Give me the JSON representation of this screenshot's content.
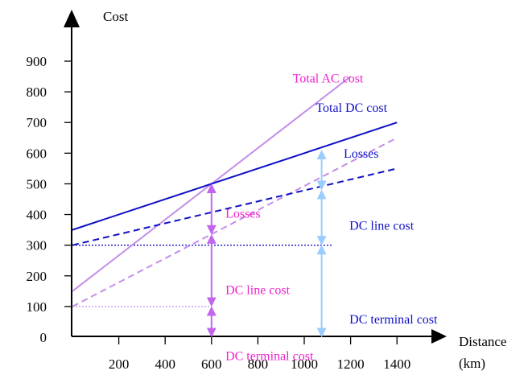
{
  "chart_data": {
    "type": "line",
    "ylabel": "Cost",
    "xlabel": "Distance",
    "xlabel_unit": "(km)",
    "xlim": [
      0,
      1500
    ],
    "ylim": [
      0,
      900
    ],
    "xticks": [
      200,
      400,
      600,
      800,
      1000,
      1200,
      1400
    ],
    "yticks": [
      0,
      100,
      200,
      300,
      400,
      500,
      600,
      700,
      800,
      900
    ],
    "grid": false,
    "legend": "none",
    "colors": {
      "ac": "#c48ee8",
      "dc": "#1010c8",
      "ac_label": "#ee22cc",
      "dc_label": "#1010c8",
      "ac_arrow": "#c266ee",
      "dc_arrow": "#99ccff"
    },
    "series": [
      {
        "key": "total_ac",
        "name": "Total AC cost",
        "style": "solid",
        "color": "ac",
        "x": [
          0,
          1200
        ],
        "y": [
          150,
          850
        ]
      },
      {
        "key": "ac_no_losses",
        "style": "dashed",
        "color": "ac",
        "x": [
          0,
          1400
        ],
        "y": [
          100,
          650
        ]
      },
      {
        "key": "total_dc",
        "name": "Total DC cost",
        "style": "solid",
        "color": "dc",
        "x": [
          0,
          1400
        ],
        "y": [
          350,
          700
        ]
      },
      {
        "key": "dc_no_losses",
        "style": "dashed",
        "color": "dc",
        "x": [
          0,
          1400
        ],
        "y": [
          300,
          550
        ]
      }
    ],
    "reference_lines": [
      {
        "key": "dc_terminal",
        "style": "dotted",
        "color": "dc",
        "x": [
          0,
          1120
        ],
        "y": 300
      },
      {
        "key": "ac_terminal",
        "style": "dotted",
        "color": "ac",
        "x": [
          0,
          600
        ],
        "y": 100
      }
    ],
    "brackets": [
      {
        "key": "ac_losses",
        "color": "ac_arrow",
        "x": 600,
        "y": [
          335,
          500
        ]
      },
      {
        "key": "ac_line",
        "color": "ac_arrow",
        "x": 600,
        "y": [
          100,
          335
        ]
      },
      {
        "key": "ac_terminal",
        "color": "ac_arrow",
        "x": 600,
        "y": [
          0,
          100
        ]
      },
      {
        "key": "dc_losses",
        "color": "dc_arrow",
        "x": 1075,
        "y": [
          480,
          610
        ]
      },
      {
        "key": "dc_line",
        "color": "dc_arrow",
        "x": 1075,
        "y": [
          300,
          480
        ]
      },
      {
        "key": "dc_terminal",
        "color": "dc_arrow",
        "x": 1075,
        "y": [
          0,
          300
        ]
      }
    ],
    "annotations": [
      {
        "key": "total_ac",
        "text": "Total AC cost",
        "color": "ac_label",
        "x": 950,
        "y": 830
      },
      {
        "key": "total_dc",
        "text": "Total DC cost",
        "color": "dc_label",
        "x": 1050,
        "y": 735
      },
      {
        "key": "dc_losses",
        "text": "Losses",
        "color": "dc_label",
        "x": 1170,
        "y": 585
      },
      {
        "key": "ac_losses",
        "text": "Losses",
        "color": "ac_label",
        "x": 660,
        "y": 390
      },
      {
        "key": "dc_line",
        "text": "DC line cost",
        "color": "dc_label",
        "x": 1195,
        "y": 350
      },
      {
        "key": "ac_line",
        "text": "DC line cost",
        "color": "ac_label",
        "x": 660,
        "y": 140
      },
      {
        "key": "dc_terminal",
        "text": "DC terminal cost",
        "color": "dc_label",
        "x": 1195,
        "y": 45
      },
      {
        "key": "ac_terminal",
        "text": "DC terminal cost",
        "color": "ac_label",
        "x": 660,
        "y": -75
      }
    ]
  }
}
